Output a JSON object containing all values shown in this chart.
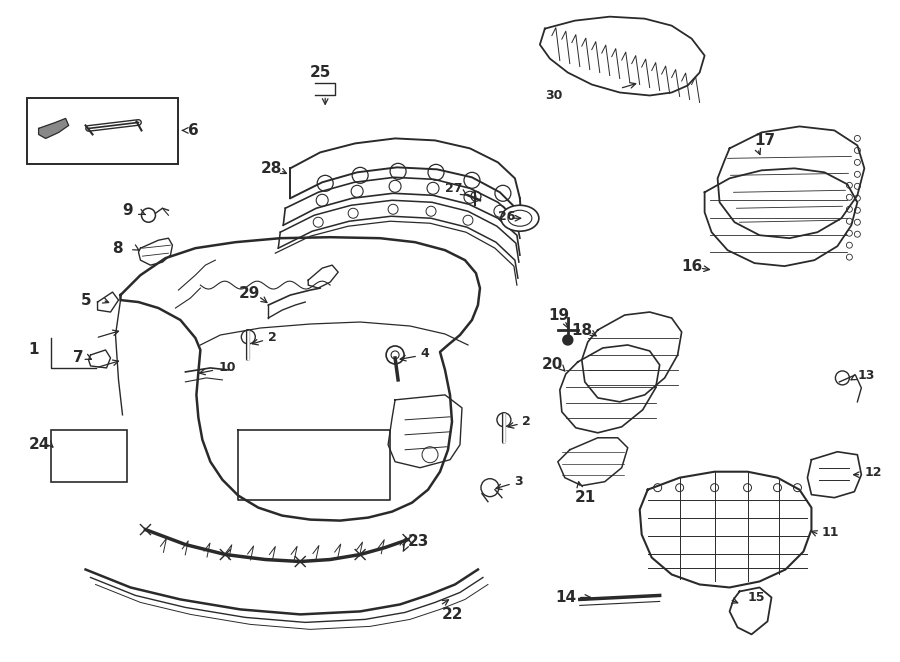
{
  "bg_color": "#ffffff",
  "line_color": "#2a2a2a",
  "fig_width": 9.0,
  "fig_height": 6.62,
  "dpi": 100,
  "label_fontsize": 11,
  "label_fontsize_sm": 9
}
